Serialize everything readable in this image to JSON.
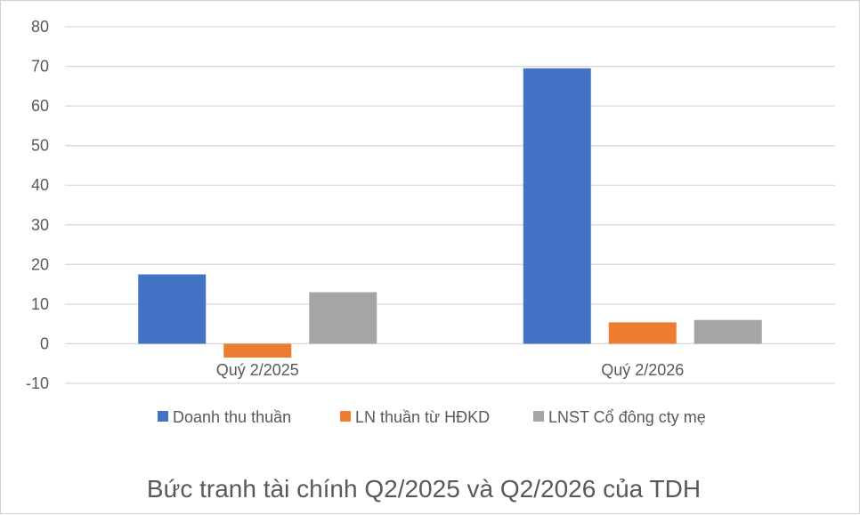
{
  "chart_data": {
    "type": "bar",
    "title": "Bức tranh tài chính Q2/2025 và Q2/2026 của TDH",
    "xlabel": "",
    "ylabel": "",
    "categories": [
      "Quý 2/2025",
      "Quý 2/2026"
    ],
    "series": [
      {
        "name": "Doanh thu thuần",
        "color": "#4472C4",
        "values": [
          17.5,
          69.5
        ]
      },
      {
        "name": "LN thuần từ HĐKD",
        "color": "#ED7D31",
        "values": [
          -3.5,
          5.4
        ]
      },
      {
        "name": "LNST Cổ đông cty mẹ",
        "color": "#A5A5A5",
        "values": [
          13,
          6
        ]
      }
    ],
    "ylim": [
      -10,
      80
    ],
    "yticks": [
      "-10",
      "0",
      "10",
      "20",
      "30",
      "40",
      "50",
      "60",
      "70",
      "80"
    ],
    "grid": true,
    "legend_position": "bottom"
  }
}
